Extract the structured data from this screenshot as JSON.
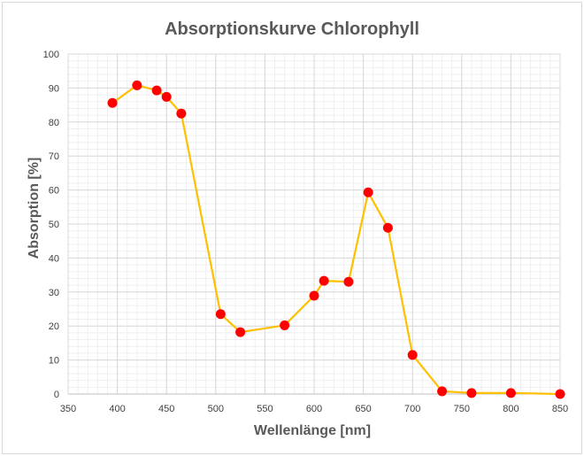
{
  "chart_data": {
    "type": "scatter",
    "title": "Absorptionskurve Chlorophyll",
    "xlabel": "Wellenlänge [nm]",
    "ylabel": "Absorption [%]",
    "xlim": [
      350,
      850
    ],
    "ylim": [
      0,
      100
    ],
    "x_major_step": 50,
    "y_major_step": 10,
    "grid": "major and minor",
    "legend": "none",
    "connect_points": true,
    "series": [
      {
        "marker_color": "#ff0000",
        "line_color": "#ffc000",
        "points": [
          {
            "x": 395,
            "y": 85.6
          },
          {
            "x": 420,
            "y": 90.8
          },
          {
            "x": 440,
            "y": 89.3
          },
          {
            "x": 450,
            "y": 87.4
          },
          {
            "x": 465,
            "y": 82.5
          },
          {
            "x": 505,
            "y": 23.5
          },
          {
            "x": 525,
            "y": 18.2
          },
          {
            "x": 570,
            "y": 20.2
          },
          {
            "x": 600,
            "y": 28.9
          },
          {
            "x": 610,
            "y": 33.3
          },
          {
            "x": 635,
            "y": 33.0
          },
          {
            "x": 655,
            "y": 59.3
          },
          {
            "x": 675,
            "y": 48.9
          },
          {
            "x": 700,
            "y": 11.5
          },
          {
            "x": 730,
            "y": 0.8
          },
          {
            "x": 760,
            "y": 0.3
          },
          {
            "x": 800,
            "y": 0.3
          },
          {
            "x": 850,
            "y": 0.0
          }
        ]
      }
    ],
    "colors": {
      "grid_major": "#d9d9d9",
      "grid_minor": "#efefef",
      "axis_line": "#bfbfbf"
    }
  }
}
